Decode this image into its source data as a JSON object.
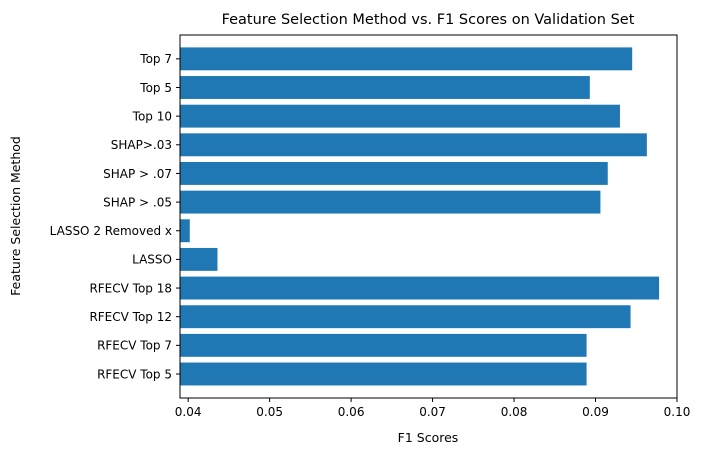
{
  "chart_data": {
    "type": "bar",
    "orientation": "horizontal",
    "title": "Feature Selection Method vs. F1 Scores on Validation Set",
    "xlabel": "F1 Scores",
    "ylabel": "Feature Selection Method",
    "xlim": [
      0.039,
      0.1
    ],
    "xticks": [
      "0.04",
      "0.05",
      "0.06",
      "0.07",
      "0.08",
      "0.09",
      "0.10"
    ],
    "grid": false,
    "bar_color": "#1f77b4",
    "categories": [
      "RFECV Top 5",
      "RFECV Top 7",
      "RFECV Top 12",
      "RFECV Top 18",
      "LASSO",
      "LASSO 2 Removed x",
      "SHAP > .05",
      "SHAP > .07",
      "SHAP>.03",
      "Top 10",
      "Top 5",
      "Top 7"
    ],
    "values": [
      0.0889,
      0.0889,
      0.0943,
      0.0978,
      0.0436,
      0.0402,
      0.0906,
      0.0915,
      0.0963,
      0.093,
      0.0893,
      0.0945
    ]
  }
}
